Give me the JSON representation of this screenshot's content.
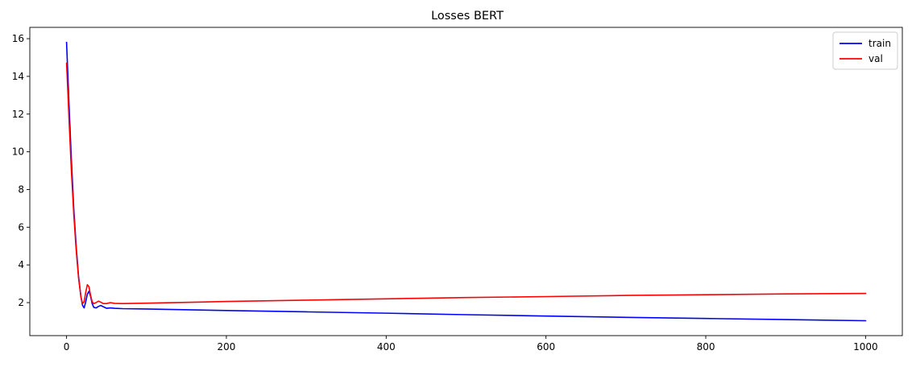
{
  "chart_data": {
    "type": "line",
    "title": "Losses BERT",
    "xlabel": "",
    "ylabel": "",
    "xlim": [
      -46,
      1046
    ],
    "ylim": [
      0.25,
      16.6
    ],
    "xticks": [
      0,
      200,
      400,
      600,
      800,
      1000
    ],
    "yticks": [
      2,
      4,
      6,
      8,
      10,
      12,
      14,
      16
    ],
    "grid": false,
    "legend": "top-right",
    "series": [
      {
        "name": "train",
        "color": "#0000ff",
        "points": [
          [
            0,
            15.8
          ],
          [
            3,
            12.6
          ],
          [
            6,
            9.6
          ],
          [
            9,
            7.0
          ],
          [
            12,
            5.0
          ],
          [
            15,
            3.4
          ],
          [
            18,
            2.3
          ],
          [
            20,
            1.85
          ],
          [
            22,
            1.72
          ],
          [
            24,
            2.05
          ],
          [
            26,
            2.45
          ],
          [
            28,
            2.6
          ],
          [
            30,
            2.35
          ],
          [
            32,
            1.95
          ],
          [
            34,
            1.75
          ],
          [
            37,
            1.72
          ],
          [
            40,
            1.8
          ],
          [
            43,
            1.85
          ],
          [
            46,
            1.78
          ],
          [
            50,
            1.7
          ],
          [
            55,
            1.72
          ],
          [
            60,
            1.7
          ],
          [
            70,
            1.68
          ],
          [
            100,
            1.66
          ],
          [
            200,
            1.58
          ],
          [
            300,
            1.51
          ],
          [
            400,
            1.44
          ],
          [
            500,
            1.36
          ],
          [
            600,
            1.29
          ],
          [
            700,
            1.22
          ],
          [
            800,
            1.16
          ],
          [
            900,
            1.1
          ],
          [
            1000,
            1.04
          ]
        ]
      },
      {
        "name": "val",
        "color": "#ff0000",
        "points": [
          [
            0,
            14.7
          ],
          [
            3,
            11.8
          ],
          [
            6,
            9.0
          ],
          [
            9,
            6.7
          ],
          [
            12,
            4.8
          ],
          [
            15,
            3.3
          ],
          [
            18,
            2.3
          ],
          [
            20,
            1.95
          ],
          [
            22,
            2.05
          ],
          [
            24,
            2.55
          ],
          [
            26,
            2.95
          ],
          [
            28,
            2.85
          ],
          [
            30,
            2.4
          ],
          [
            32,
            2.05
          ],
          [
            34,
            1.95
          ],
          [
            37,
            2.0
          ],
          [
            40,
            2.08
          ],
          [
            43,
            2.02
          ],
          [
            46,
            1.95
          ],
          [
            50,
            1.95
          ],
          [
            55,
            2.0
          ],
          [
            60,
            1.96
          ],
          [
            70,
            1.95
          ],
          [
            100,
            1.97
          ],
          [
            200,
            2.06
          ],
          [
            300,
            2.13
          ],
          [
            400,
            2.2
          ],
          [
            500,
            2.27
          ],
          [
            600,
            2.32
          ],
          [
            700,
            2.38
          ],
          [
            800,
            2.42
          ],
          [
            900,
            2.46
          ],
          [
            1000,
            2.49
          ]
        ]
      }
    ]
  }
}
